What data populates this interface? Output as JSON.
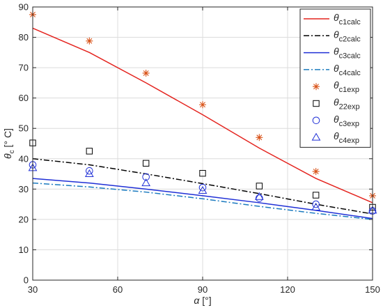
{
  "chart_data": {
    "type": "line",
    "xlabel": {
      "sym": "α",
      "unit": " [°]"
    },
    "ylabel": {
      "sym": "θ",
      "sub": "c",
      "unit": " [° C]"
    },
    "xlim": [
      30,
      150
    ],
    "ylim": [
      0,
      90
    ],
    "xticks": [
      30,
      60,
      90,
      120,
      150
    ],
    "yticks": [
      0,
      10,
      20,
      30,
      40,
      50,
      60,
      70,
      80,
      90
    ],
    "grid": true,
    "legend_position": "top-right",
    "series": [
      {
        "sym": "θ",
        "sub": "c1calc",
        "kind": "line",
        "style": "solid",
        "color": "#e4231e",
        "x": [
          30,
          50,
          70,
          90,
          110,
          130,
          150
        ],
        "values": [
          83,
          75,
          65,
          54.5,
          43.5,
          33.5,
          25.5
        ]
      },
      {
        "sym": "θ",
        "sub": "c2calc",
        "kind": "line",
        "style": "dashdot",
        "color": "#000000",
        "x": [
          30,
          50,
          70,
          90,
          110,
          130,
          150
        ],
        "values": [
          40,
          38,
          35,
          31.8,
          28.5,
          25,
          21.8
        ]
      },
      {
        "sym": "θ",
        "sub": "c3calc",
        "kind": "line",
        "style": "solid",
        "color": "#1f2fd6",
        "x": [
          30,
          50,
          70,
          90,
          110,
          130,
          150
        ],
        "values": [
          33.5,
          32,
          30,
          27.8,
          25.5,
          23,
          20.3
        ]
      },
      {
        "sym": "θ",
        "sub": "c4calc",
        "kind": "line",
        "style": "dashdot",
        "color": "#1a7abf",
        "x": [
          30,
          50,
          70,
          90,
          110,
          130,
          150
        ],
        "values": [
          32,
          30.7,
          29,
          26.8,
          24.3,
          22,
          20
        ]
      },
      {
        "sym": "θ",
        "sub": "c1exp",
        "kind": "marker",
        "marker": "star",
        "color": "#d95319",
        "x": [
          30,
          50,
          70,
          90,
          110,
          130,
          150
        ],
        "values": [
          87.5,
          78.8,
          68.2,
          57.8,
          47,
          35.8,
          27.8
        ]
      },
      {
        "sym": "θ",
        "sub": "22exp",
        "kind": "marker",
        "marker": "square",
        "color": "#000000",
        "x": [
          30,
          50,
          70,
          90,
          110,
          130,
          150
        ],
        "values": [
          45.2,
          42.5,
          38.5,
          35.2,
          31,
          28,
          24
        ]
      },
      {
        "sym": "θ",
        "sub": "c3exp",
        "kind": "marker",
        "marker": "circle",
        "color": "#1f2fd6",
        "x": [
          30,
          50,
          70,
          90,
          110,
          130,
          150
        ],
        "values": [
          38,
          36,
          34,
          30.5,
          27,
          25,
          22.8
        ]
      },
      {
        "sym": "θ",
        "sub": "c4exp",
        "kind": "marker",
        "marker": "triangle",
        "color": "#1f2fd6",
        "x": [
          30,
          50,
          70,
          90,
          110,
          130,
          150
        ],
        "values": [
          37,
          35,
          32,
          29.5,
          27.5,
          24,
          23
        ]
      }
    ]
  }
}
